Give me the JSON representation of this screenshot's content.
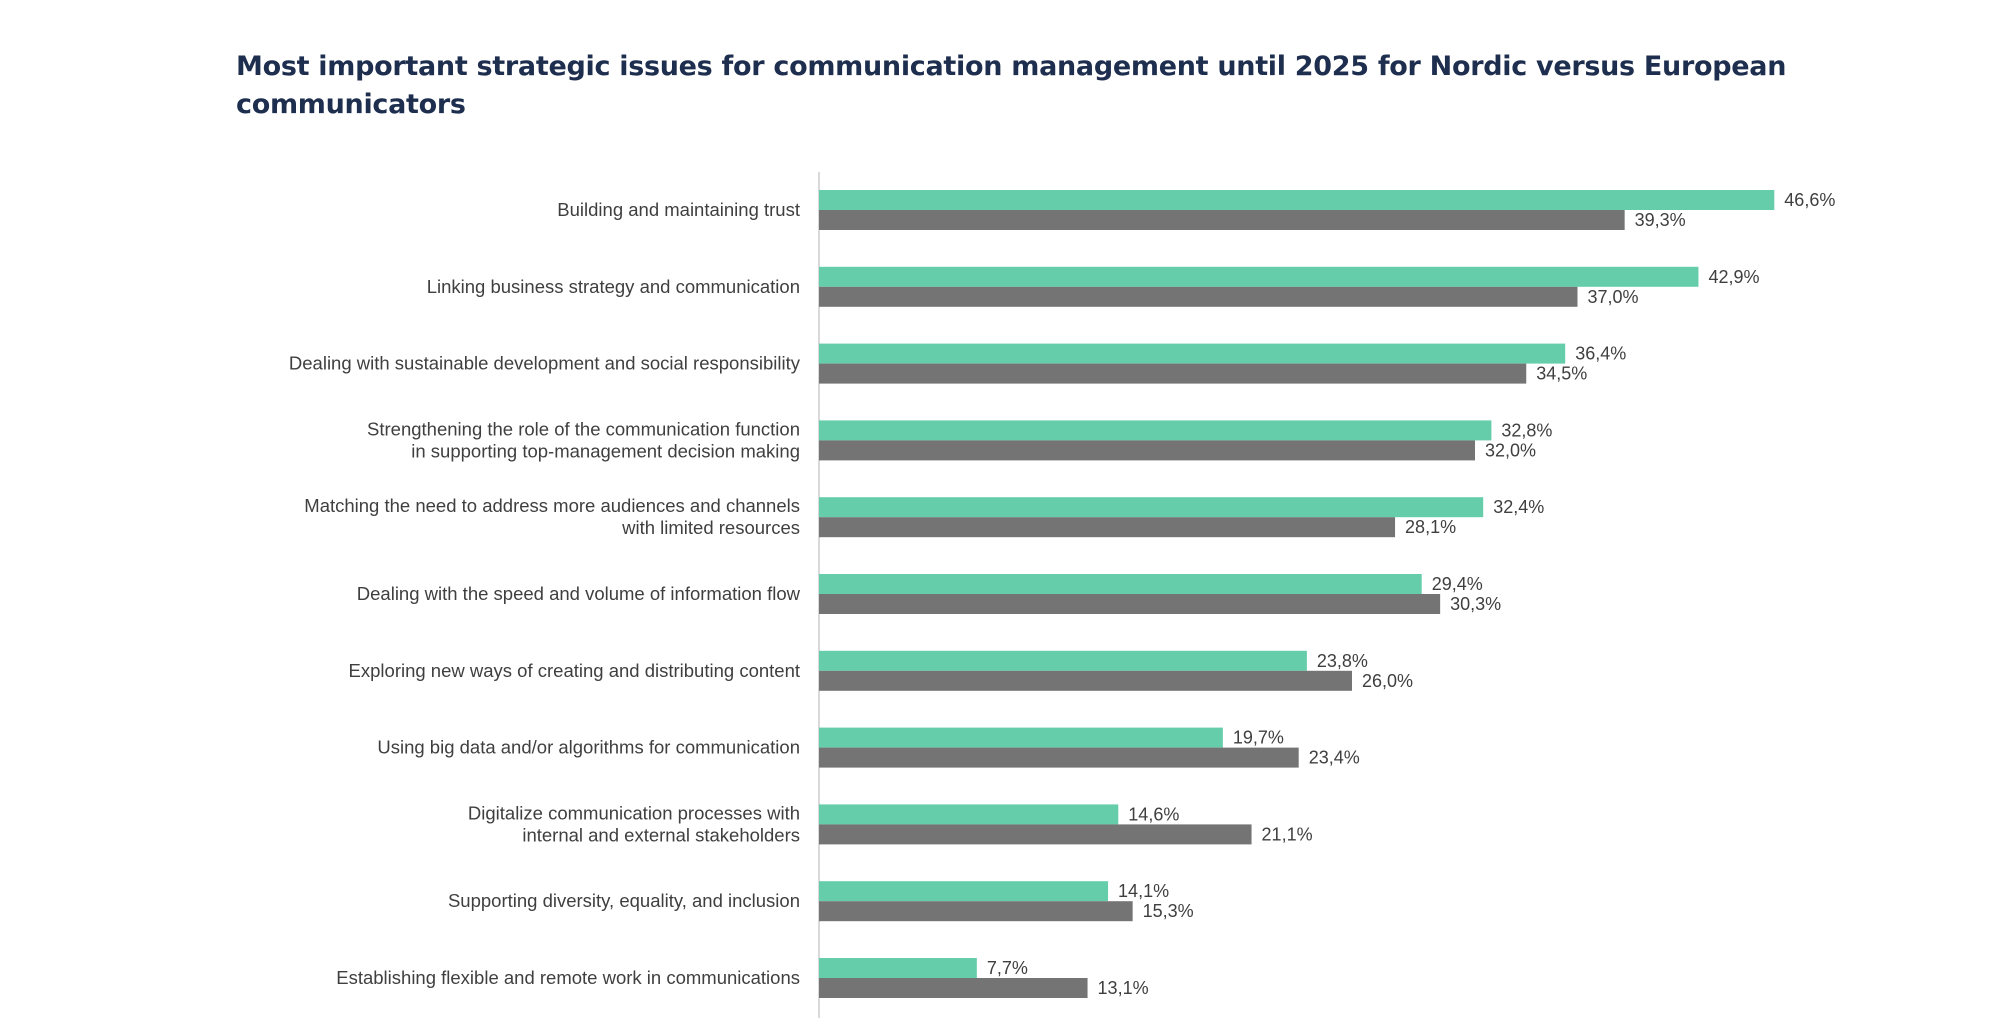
{
  "chart_data": {
    "type": "bar",
    "orientation": "horizontal",
    "title": "Most important strategic issues for communication management until 2025 for Nordic versus European communicators",
    "categories": [
      [
        "Building and maintaining trust"
      ],
      [
        "Linking business strategy and communication"
      ],
      [
        "Dealing with sustainable development and social responsibility"
      ],
      [
        "Strengthening the role of the communication function",
        "in supporting top-management decision making"
      ],
      [
        "Matching the need to address more audiences and channels",
        "with limited resources"
      ],
      [
        "Dealing with the speed and volume of information flow"
      ],
      [
        "Exploring new ways of creating and distributing content"
      ],
      [
        "Using big data and/or algorithms for communication"
      ],
      [
        "Digitalize communication processes with",
        "internal and external stakeholders"
      ],
      [
        "Supporting diversity, equality, and inclusion"
      ],
      [
        "Establishing flexible and remote work in communications"
      ]
    ],
    "series": [
      {
        "color": "#66cdaa",
        "values": [
          46.6,
          42.9,
          36.4,
          32.8,
          32.4,
          29.4,
          23.8,
          19.7,
          14.6,
          14.1,
          7.7
        ],
        "labels": [
          "46,6%",
          "42,9%",
          "36,4%",
          "32,8%",
          "32,4%",
          "29,4%",
          "23,8%",
          "19,7%",
          "14,6%",
          "14,1%",
          "7,7%"
        ]
      },
      {
        "color": "#747474",
        "values": [
          39.3,
          37.0,
          34.5,
          32.0,
          28.1,
          30.3,
          26.0,
          23.4,
          21.1,
          15.3,
          13.1
        ],
        "labels": [
          "39,3%",
          "37,0%",
          "34,5%",
          "32,0%",
          "28,1%",
          "30,3%",
          "26,0%",
          "23,4%",
          "21,1%",
          "15,3%",
          "13,1%"
        ]
      }
    ],
    "xlim": [
      0,
      50
    ],
    "grid": false,
    "legend": "none"
  }
}
